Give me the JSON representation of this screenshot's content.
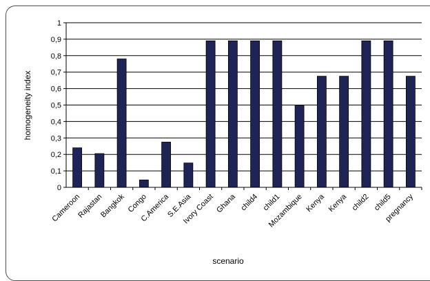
{
  "chart_data": {
    "type": "bar",
    "title": "",
    "xlabel": "scenario",
    "ylabel": "homogeneity index",
    "ylim": [
      0,
      1
    ],
    "ytick_labels": [
      "0",
      "0,1",
      "0,2",
      "0,3",
      "0,4",
      "0,5",
      "0,6",
      "0,7",
      "0,8",
      "0,9",
      "1"
    ],
    "grid": "horizontal",
    "legend": "none",
    "bar_color": "#1f2456",
    "categories": [
      "Cameroon",
      "Rajastan",
      "Bangkok",
      "Congo",
      "C.America",
      "S.E.Asia",
      "Ivory Coast",
      "Ghana",
      "child4",
      "child1",
      "Mozambique",
      "Kenya",
      "Kenya",
      "child2",
      "child5",
      "pregnancy"
    ],
    "values": [
      0.24,
      0.205,
      0.78,
      0.045,
      0.275,
      0.148,
      0.89,
      0.89,
      0.89,
      0.89,
      0.5,
      0.675,
      0.675,
      0.89,
      0.89,
      0.675
    ]
  }
}
